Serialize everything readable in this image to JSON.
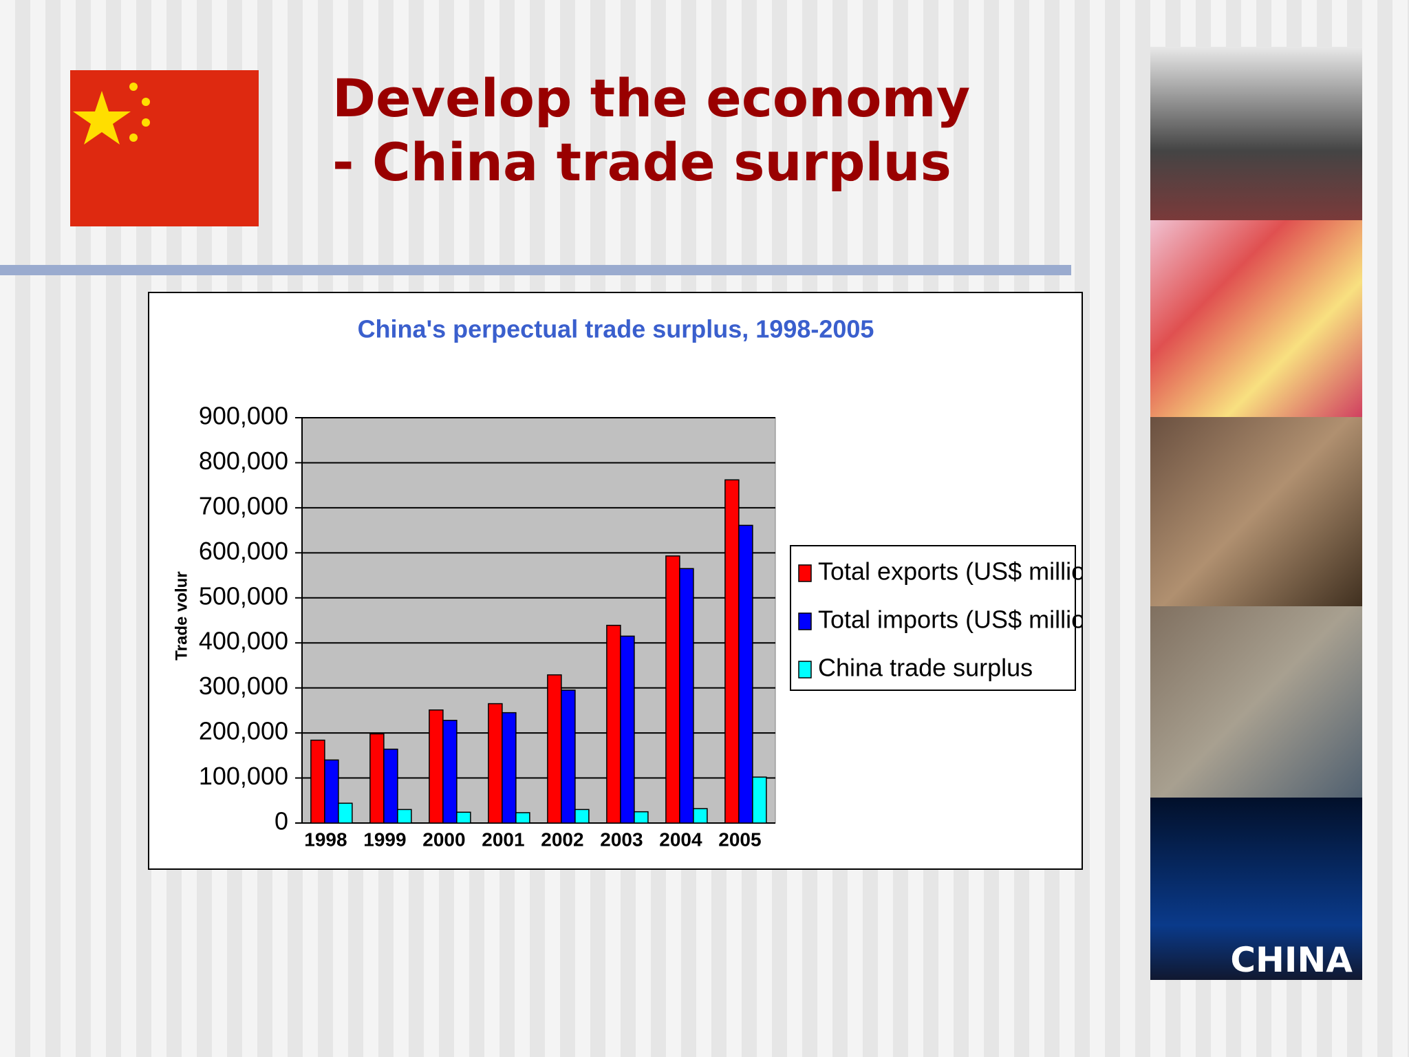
{
  "header": {
    "title_line1": "Develop the economy",
    "title_line2": "- China trade surplus"
  },
  "photo_caption": "CHINA",
  "chart_data": {
    "type": "bar",
    "title": "China's perpectual trade surplus, 1998-2005",
    "y_label": "Trade volur",
    "categories": [
      "1998",
      "1999",
      "2000",
      "2001",
      "2002",
      "2003",
      "2004",
      "2005"
    ],
    "series": [
      {
        "name": "Total exports (US$ million)",
        "color": "#ff0000",
        "values": [
          184000,
          198000,
          251000,
          265000,
          329000,
          439000,
          593000,
          762000
        ]
      },
      {
        "name": "Total imports (US$ million)",
        "color": "#0000ff",
        "values": [
          140000,
          164000,
          228000,
          245000,
          295000,
          415000,
          565000,
          661000
        ]
      },
      {
        "name": "China trade surplus",
        "color": "#00ffff",
        "values": [
          44000,
          30000,
          24000,
          23000,
          30000,
          25000,
          32000,
          102000
        ]
      }
    ],
    "ylim": [
      0,
      900000
    ],
    "yticks": [
      0,
      {
        "value": 100000,
        "label": "100,000"
      },
      {
        "value": 200000,
        "label": "200,000"
      },
      {
        "value": 300000,
        "label": "300,000"
      },
      {
        "value": 400000,
        "label": "400,000"
      },
      {
        "value": 500000,
        "label": "500,000"
      },
      {
        "value": 600000,
        "label": "600,000"
      },
      {
        "value": 700000,
        "label": "700,000"
      },
      {
        "value": 800000,
        "label": "800,000"
      },
      {
        "value": 900000,
        "label": "900,000"
      }
    ],
    "grid": true,
    "plot_background": "#c0c0c0"
  }
}
